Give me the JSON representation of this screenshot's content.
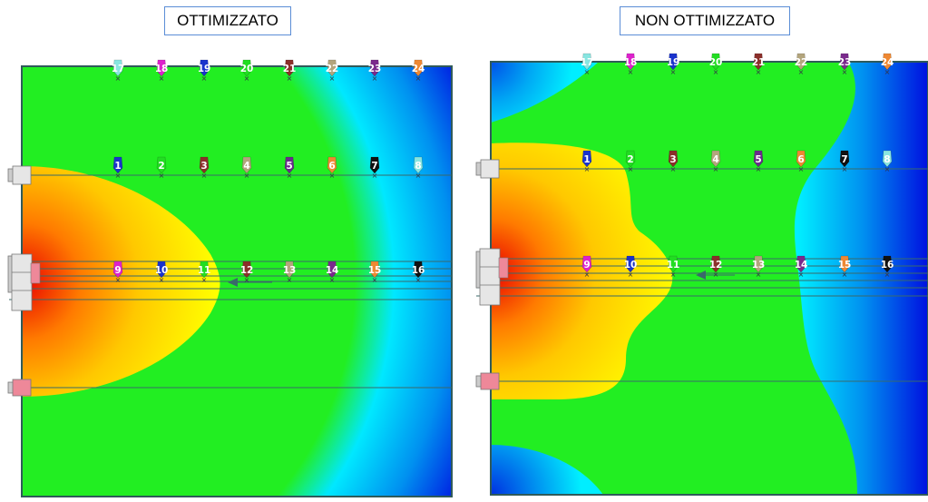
{
  "titles": {
    "left": "OTTIMIZZATO",
    "right": "NON OTTIMIZZATO"
  },
  "colors": {
    "heat_red": "#e60000",
    "heat_orange": "#ff8c00",
    "heat_yellow": "#ffff00",
    "heat_green": "#22ee22",
    "heat_cyan": "#00eeff",
    "heat_blue": "#0000e0",
    "frame": "#2f5a5a",
    "line": "#3a6a6a"
  },
  "markers": {
    "row1": [
      {
        "label": "1",
        "color": "#1a33cc",
        "text": "#ffffff"
      },
      {
        "label": "2",
        "color": "#22dd22",
        "text": "#ffffff"
      },
      {
        "label": "3",
        "color": "#8b2f2a",
        "text": "#ffffff"
      },
      {
        "label": "4",
        "color": "#b3a57d",
        "text": "#ffffff"
      },
      {
        "label": "5",
        "color": "#6a2b8c",
        "text": "#ffffff"
      },
      {
        "label": "6",
        "color": "#ee8833",
        "text": "#ffffff"
      },
      {
        "label": "7",
        "color": "#111111",
        "text": "#ffffff"
      },
      {
        "label": "8",
        "color": "#88e5e0",
        "text": "#ffffff"
      }
    ],
    "row2": [
      {
        "label": "9",
        "color": "#dd22cc",
        "text": "#ffffff"
      },
      {
        "label": "10",
        "color": "#1a33cc",
        "text": "#ffffff"
      },
      {
        "label": "11",
        "color": "#22dd22",
        "text": "#ffffff"
      },
      {
        "label": "12",
        "color": "#8b2f2a",
        "text": "#ffffff"
      },
      {
        "label": "13",
        "color": "#b3a57d",
        "text": "#ffffff"
      },
      {
        "label": "14",
        "color": "#7a2a8c",
        "text": "#ffffff"
      },
      {
        "label": "15",
        "color": "#ee8833",
        "text": "#ffffff"
      },
      {
        "label": "16",
        "color": "#111111",
        "text": "#ffffff"
      }
    ],
    "row3": [
      {
        "label": "17",
        "color": "#88e5e0",
        "text": "#ffffff"
      },
      {
        "label": "18",
        "color": "#dd22cc",
        "text": "#ffffff"
      },
      {
        "label": "19",
        "color": "#1a33cc",
        "text": "#ffffff"
      },
      {
        "label": "20",
        "color": "#22dd22",
        "text": "#ffffff"
      },
      {
        "label": "21",
        "color": "#8b2f2a",
        "text": "#ffffff"
      },
      {
        "label": "22",
        "color": "#b3a57d",
        "text": "#ffffff"
      },
      {
        "label": "23",
        "color": "#7a2a8c",
        "text": "#ffffff"
      },
      {
        "label": "24",
        "color": "#ee8833",
        "text": "#ffffff"
      }
    ]
  }
}
